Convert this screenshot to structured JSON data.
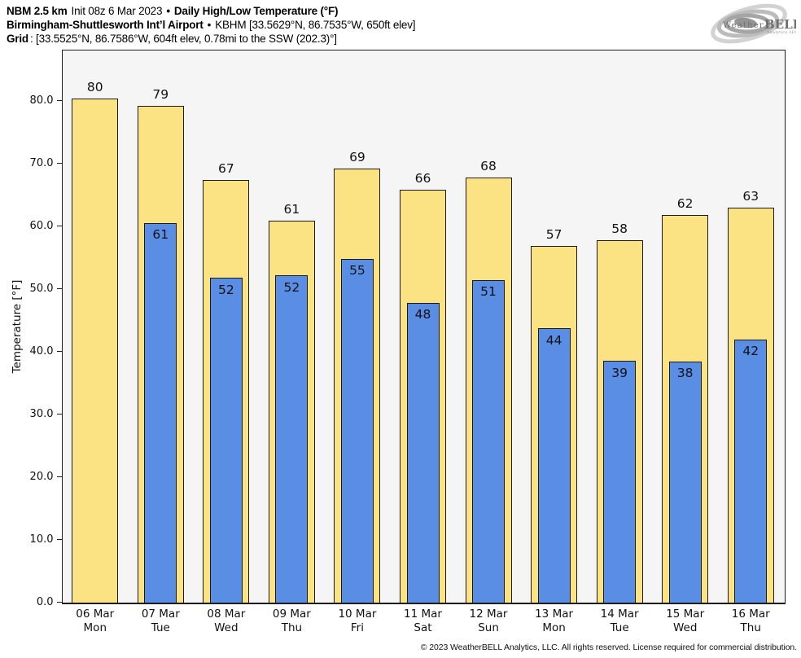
{
  "header": {
    "line1": {
      "model": "NBM 2.5 km",
      "init": "Init 08z 6 Mar 2023",
      "bullet": "•",
      "title": "Daily High/Low Temperature (°F)"
    },
    "line2": {
      "station": "Birmingham-Shuttlesworth Int’l Airport",
      "bullet": "•",
      "location": "KBHM [33.5629°N, 86.7535°W, 650ft elev]"
    },
    "line3": {
      "label": "Grid",
      "value": ": [33.5525°N, 86.7586°W, 604ft elev, 0.78mi to the SSW (202.3)°]"
    }
  },
  "logo": {
    "word1": "Weather",
    "word2": "BELL",
    "tagline": "Analytics LLC"
  },
  "chart_data": {
    "type": "bar",
    "title": "NBM 2.5 km Init 08z 6 Mar 2023 • Daily High/Low Temperature (°F)",
    "subtitle": "Birmingham-Shuttlesworth Int’l Airport (KBHM)",
    "ylabel": "Temperature [°F]",
    "xlabel": "",
    "ylim": [
      0,
      88
    ],
    "ytick_values": [
      0,
      10,
      20,
      30,
      40,
      50,
      60,
      70,
      80
    ],
    "ytick_labels": [
      "0.0",
      "10.0",
      "20.0",
      "30.0",
      "40.0",
      "50.0",
      "60.0",
      "70.0",
      "80.0"
    ],
    "categories": [
      "06 Mar",
      "07 Mar",
      "08 Mar",
      "09 Mar",
      "10 Mar",
      "11 Mar",
      "12 Mar",
      "13 Mar",
      "14 Mar",
      "15 Mar",
      "16 Mar"
    ],
    "day_labels": [
      "Mon",
      "Tue",
      "Wed",
      "Thu",
      "Fri",
      "Sat",
      "Sun",
      "Mon",
      "Tue",
      "Wed",
      "Thu"
    ],
    "series": [
      {
        "name": "Daily High",
        "color": "#fbe282",
        "values": [
          80,
          79,
          67,
          61,
          69,
          66,
          68,
          57,
          58,
          62,
          63
        ],
        "bar_heights": [
          80.3,
          79.2,
          67.4,
          60.8,
          69.2,
          65.8,
          67.7,
          56.8,
          57.8,
          61.7,
          62.9
        ]
      },
      {
        "name": "Daily Low",
        "color": "#5a8de4",
        "values": [
          null,
          61,
          52,
          52,
          55,
          48,
          51,
          44,
          39,
          38,
          42
        ],
        "bar_heights": [
          null,
          60.5,
          51.7,
          52.1,
          54.8,
          47.8,
          51.4,
          43.7,
          38.5,
          38.4,
          41.9
        ]
      }
    ],
    "grid": false,
    "legend_position": "none",
    "plot_background": "#f5f5f5",
    "bar_border_color": "#1a1a1a"
  },
  "footer": {
    "copyright": "© 2023 WeatherBELL Analytics, LLC. All rights reserved. License required for commercial distribution."
  }
}
